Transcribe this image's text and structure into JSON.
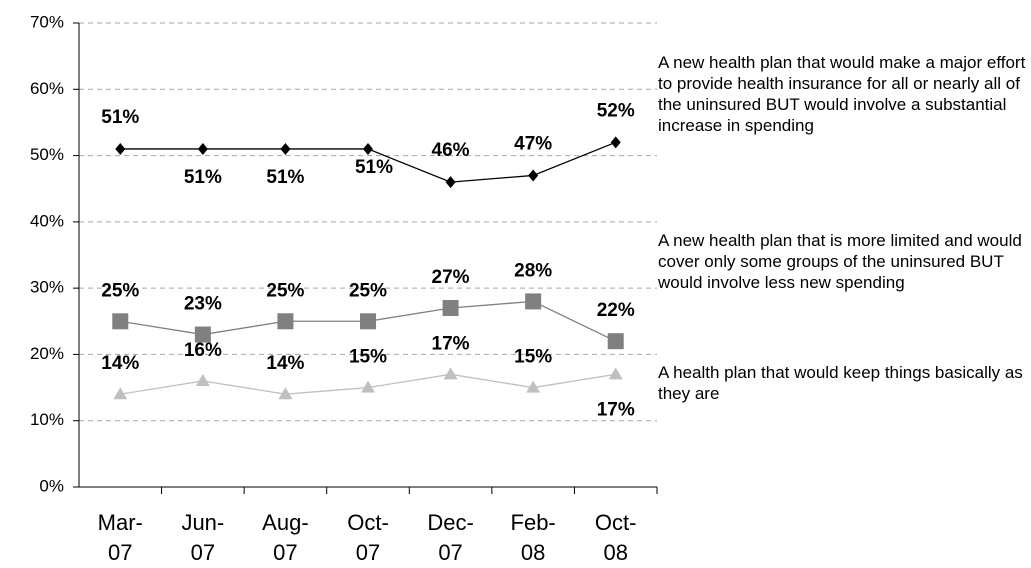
{
  "chart_data": {
    "type": "line",
    "categories": [
      "Mar-07",
      "Jun-07",
      "Aug-07",
      "Oct-07",
      "Dec-07",
      "Feb-08",
      "Oct-08"
    ],
    "ylim": [
      0,
      70
    ],
    "yticks": [
      {
        "value": 0,
        "label": "0%"
      },
      {
        "value": 10,
        "label": "10%"
      },
      {
        "value": 20,
        "label": "20%"
      },
      {
        "value": 30,
        "label": "30%"
      },
      {
        "value": 40,
        "label": "40%"
      },
      {
        "value": 50,
        "label": "50%"
      },
      {
        "value": 60,
        "label": "60%"
      },
      {
        "value": 70,
        "label": "70%"
      }
    ],
    "grid": true,
    "series": [
      {
        "name": "A new health plan that would make a major effort to provide health insurance for all or nearly all of the uninsured BUT would involve a substantial increase in spending",
        "color": "#000000",
        "marker": "diamond",
        "values": [
          51,
          51,
          51,
          51,
          46,
          47,
          52
        ],
        "value_labels": [
          "51%",
          "51%",
          "51%",
          "51%",
          "46%",
          "47%",
          "52%"
        ]
      },
      {
        "name": "A new health plan that is more limited and would cover only some groups of the uninsured BUT would involve less new spending",
        "color": "#808080",
        "marker": "square",
        "values": [
          25,
          23,
          25,
          25,
          27,
          28,
          22
        ],
        "value_labels": [
          "25%",
          "23%",
          "25%",
          "25%",
          "27%",
          "28%",
          "22%"
        ]
      },
      {
        "name": "A health plan that would keep things basically as they are",
        "color": "#c0c0c0",
        "marker": "triangle",
        "values": [
          14,
          16,
          14,
          15,
          17,
          15,
          17
        ],
        "value_labels": [
          "14%",
          "16%",
          "14%",
          "15%",
          "17%",
          "15%",
          "17%"
        ]
      }
    ]
  }
}
